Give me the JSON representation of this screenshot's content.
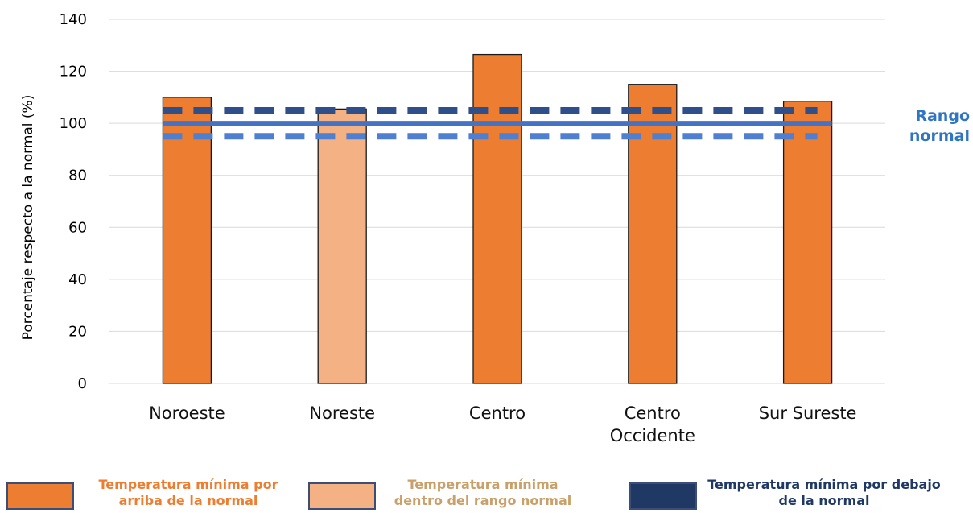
{
  "chart_data": {
    "type": "bar",
    "categories": [
      "Noroeste",
      "Noreste",
      "Centro",
      "Centro Occidente",
      "Sur Sureste"
    ],
    "category_lines": [
      [
        "Noroeste"
      ],
      [
        "Noreste"
      ],
      [
        "Centro"
      ],
      [
        "Centro",
        "Occidente"
      ],
      [
        "Sur Sureste"
      ]
    ],
    "values": [
      110,
      105.5,
      126.5,
      115,
      108.5
    ],
    "bar_classes": [
      "above",
      "within",
      "above",
      "above",
      "above"
    ],
    "ylabel": "Porcentaje respecto a la normal (%)",
    "xlabel": "",
    "ylim": [
      0,
      140
    ],
    "yticks": [
      0,
      20,
      40,
      60,
      80,
      100,
      120,
      140
    ],
    "grid": true,
    "reference_lines": [
      {
        "value": 105,
        "style": "dashed",
        "color": "#2f4f8a"
      },
      {
        "value": 100,
        "style": "solid",
        "color": "#4472c4"
      },
      {
        "value": 95,
        "style": "dashed",
        "color": "#4e7fd0"
      }
    ],
    "range_label": "Rango normal",
    "colors": {
      "above": "#ed7d31",
      "within": "#f4b183",
      "below": "#1f3864"
    }
  },
  "legend": [
    {
      "key": "above",
      "label": "Temperatura mínima por arriba de la normal",
      "color": "#ed7d31",
      "text_color": "#ed7d31"
    },
    {
      "key": "within",
      "label": "Temperatura mínima dentro del rango normal",
      "color": "#f4b183",
      "text_color": "#c9a06a"
    },
    {
      "key": "below",
      "label": "Temperatura mínima por debajo de la normal",
      "color": "#1f3864",
      "text_color": "#1f3864"
    }
  ]
}
